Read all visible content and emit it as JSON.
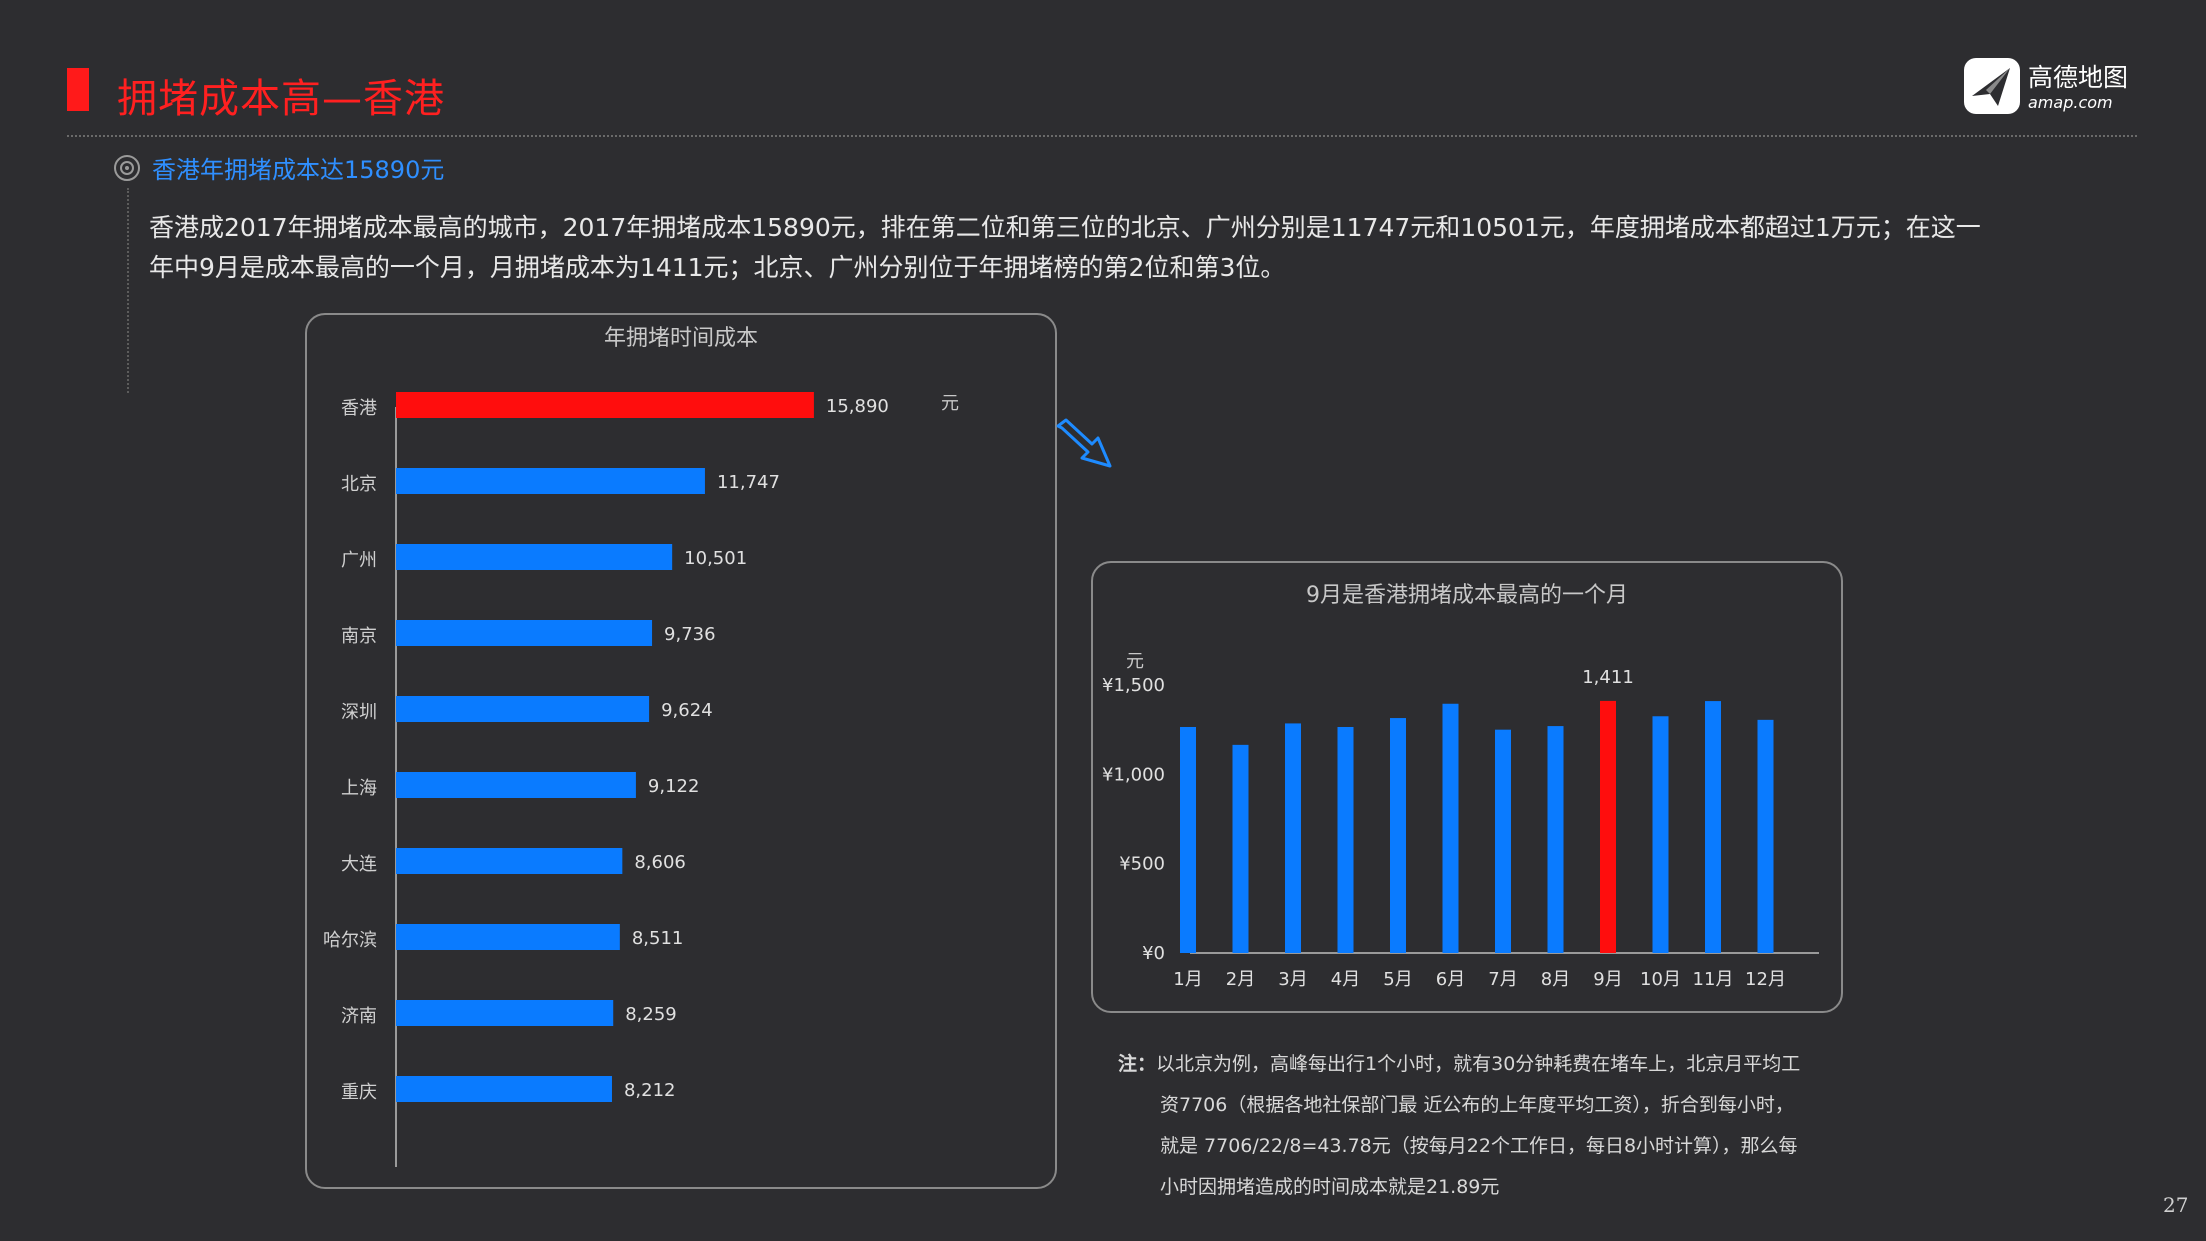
{
  "header": {
    "title": "拥堵成本高—香港",
    "logo_cn": "高德地图",
    "logo_en": "amap.com"
  },
  "section": {
    "subtitle": "香港年拥堵成本达15890元",
    "paragraph": "香港成2017年拥堵成本最高的城市，2017年拥堵成本15890元，排在第二位和第三位的北京、广州分别是11747元和10501元，年度拥堵成本都超过1万元；在这一年中9月是成本最高的一个月，月拥堵成本为1411元；北京、广州分别位于年拥堵榜的第2位和第3位。"
  },
  "chart_data": [
    {
      "type": "bar",
      "orientation": "horizontal",
      "title": "年拥堵时间成本",
      "unit": "元",
      "categories": [
        "香港",
        "北京",
        "广州",
        "南京",
        "深圳",
        "上海",
        "大连",
        "哈尔滨",
        "济南",
        "重庆"
      ],
      "values": [
        15890,
        11747,
        10501,
        9736,
        9624,
        9122,
        8606,
        8511,
        8259,
        8212
      ],
      "value_labels": [
        "15,890",
        "11,747",
        "10,501",
        "9,736",
        "9,624",
        "9,122",
        "8,606",
        "8,511",
        "8,259",
        "8,212"
      ],
      "highlight_index": 0,
      "colors": {
        "bar": "#0a7bff",
        "highlight": "#ff0d0d"
      },
      "xlim": [
        0,
        20000
      ]
    },
    {
      "type": "bar",
      "orientation": "vertical",
      "title": "9月是香港拥堵成本最高的一个月",
      "unit": "元",
      "categories": [
        "1月",
        "2月",
        "3月",
        "4月",
        "5月",
        "6月",
        "7月",
        "8月",
        "9月",
        "10月",
        "11月",
        "12月"
      ],
      "values": [
        1265,
        1165,
        1285,
        1265,
        1315,
        1395,
        1250,
        1270,
        1411,
        1325,
        1410,
        1305
      ],
      "highlight_index": 8,
      "highlight_label": "1,411",
      "yticks": [
        "¥0",
        "¥500",
        "¥1,000",
        "¥1,500"
      ],
      "ylim": [
        0,
        1500
      ],
      "colors": {
        "bar": "#0a7bff",
        "highlight": "#ff0d0d"
      }
    }
  ],
  "note": {
    "label": "注：",
    "line1": "以北京为例，高峰每出行1个小时，就有30分钟耗费在堵车上，北京月平均工",
    "line2": "资7706（根据各地社保部门最 近公布的上年度平均工资），折合到每小时，",
    "line3": "就是 7706/22/8=43.78元（按每月22个工作日，每日8小时计算），那么每",
    "line4": "小时因拥堵造成的时间成本就是21.89元"
  },
  "page_number": "27"
}
